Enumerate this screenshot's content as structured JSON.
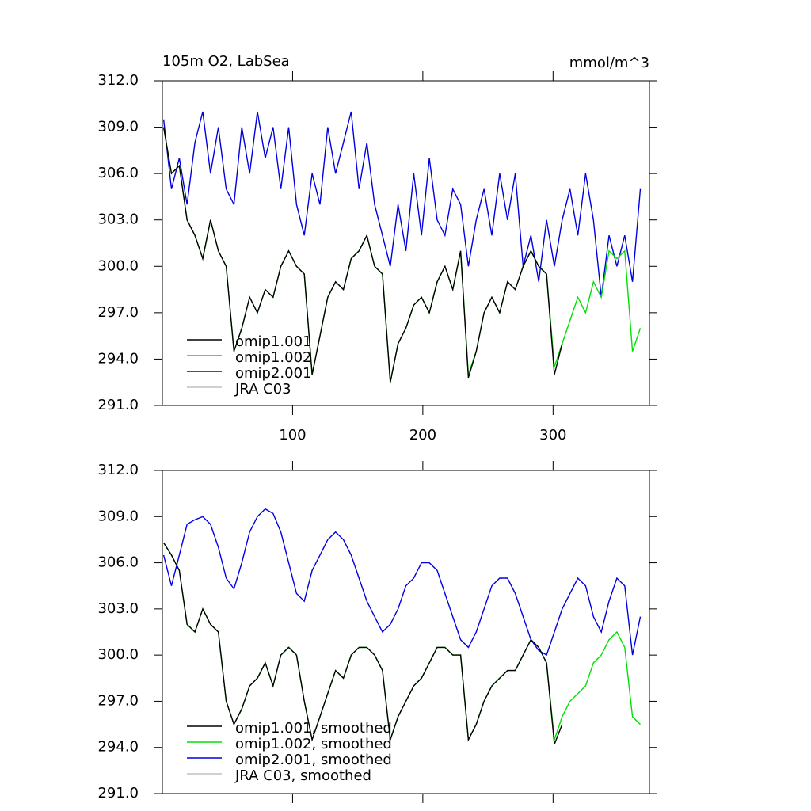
{
  "chart_data": [
    {
      "type": "line",
      "title": "105m O2, LabSea",
      "unit_label": "mmol/m^3",
      "x": [
        1,
        7,
        13,
        19,
        25,
        31,
        37,
        43,
        49,
        55,
        61,
        67,
        73,
        79,
        85,
        91,
        97,
        103,
        109,
        115,
        121,
        127,
        133,
        139,
        145,
        151,
        157,
        163,
        169,
        175,
        181,
        187,
        193,
        199,
        205,
        211,
        217,
        223,
        229,
        235,
        241,
        247,
        253,
        259,
        265,
        271,
        277,
        283,
        289,
        295,
        301,
        307,
        313,
        319,
        325,
        331,
        337,
        343,
        349,
        355,
        361,
        367
      ],
      "series": [
        {
          "name": "omip1.001",
          "color": "#000000",
          "values": [
            309,
            306,
            306.5,
            303,
            302,
            300.5,
            303,
            301,
            300,
            294.5,
            296,
            298,
            297,
            298.5,
            298,
            300,
            301,
            300,
            299.5,
            293,
            295.5,
            298,
            299,
            298.5,
            300.5,
            301,
            302,
            300,
            299.5,
            292.5,
            295,
            296,
            297.5,
            298,
            297,
            299,
            300,
            298.5,
            301,
            292.8,
            294.5,
            297,
            298,
            297,
            299,
            298.5,
            300,
            301,
            300,
            299.5,
            293,
            295,
            null,
            null,
            null,
            null,
            null,
            null,
            null,
            null,
            null,
            null
          ]
        },
        {
          "name": "omip1.002",
          "color": "#00e000",
          "values": [
            309,
            306,
            306.5,
            303,
            302,
            300.5,
            303,
            301,
            300,
            294.5,
            296,
            298,
            297,
            298.5,
            298,
            300,
            301,
            300,
            299.5,
            293,
            295.5,
            298,
            299,
            298.5,
            300.5,
            301,
            302,
            300,
            299.5,
            292.5,
            295,
            296,
            297.5,
            298,
            297,
            299,
            300,
            298.5,
            301,
            293,
            294.5,
            297,
            298,
            297,
            299,
            298.5,
            300,
            301,
            300,
            299.5,
            293.5,
            295,
            296.5,
            298,
            297,
            299,
            298,
            301,
            300.5,
            301,
            294.5,
            296
          ]
        },
        {
          "name": "omip2.001",
          "color": "#0000e0",
          "values": [
            309.5,
            305,
            307,
            304,
            308,
            310,
            306,
            309,
            305,
            304,
            309,
            306,
            310,
            307,
            309,
            305,
            309,
            304,
            302,
            306,
            304,
            309,
            306,
            308,
            310,
            305,
            308,
            304,
            302,
            300,
            304,
            301,
            306,
            302,
            307,
            303,
            302,
            305,
            304,
            300,
            303,
            305,
            302,
            306,
            303,
            306,
            300,
            302,
            299,
            303,
            300,
            303,
            305,
            302,
            306,
            303,
            298,
            302,
            300,
            302,
            299,
            305
          ]
        },
        {
          "name": "JRA C03",
          "color": "#c0c0c0",
          "values": [
            null,
            null,
            null,
            null,
            null,
            null,
            null,
            null,
            null,
            null,
            null,
            null,
            null,
            null,
            null,
            null,
            null,
            null,
            null,
            null,
            null,
            null,
            null,
            null,
            null,
            null,
            null,
            null,
            null,
            null,
            null,
            null,
            null,
            null,
            null,
            null,
            null,
            null,
            null,
            null,
            null,
            null,
            null,
            null,
            null,
            null,
            null,
            null,
            null,
            null,
            null,
            null,
            null,
            null,
            null,
            null,
            null,
            null,
            null,
            null,
            null,
            null
          ]
        }
      ],
      "xlim": [
        0,
        374
      ],
      "ylim": [
        291,
        312
      ],
      "xticks": [
        100,
        200,
        300
      ],
      "yticks": [
        {
          "value": 291,
          "label": "291.0"
        },
        {
          "value": 294,
          "label": "294.0"
        },
        {
          "value": 297,
          "label": "297.0"
        },
        {
          "value": 300,
          "label": "300.0"
        },
        {
          "value": 303,
          "label": "303.0"
        },
        {
          "value": 306,
          "label": "306.0"
        },
        {
          "value": 309,
          "label": "309.0"
        },
        {
          "value": 312,
          "label": "312.0"
        }
      ]
    },
    {
      "type": "line",
      "x": [
        1,
        7,
        13,
        19,
        25,
        31,
        37,
        43,
        49,
        55,
        61,
        67,
        73,
        79,
        85,
        91,
        97,
        103,
        109,
        115,
        121,
        127,
        133,
        139,
        145,
        151,
        157,
        163,
        169,
        175,
        181,
        187,
        193,
        199,
        205,
        211,
        217,
        223,
        229,
        235,
        241,
        247,
        253,
        259,
        265,
        271,
        277,
        283,
        289,
        295,
        301,
        307,
        313,
        319,
        325,
        331,
        337,
        343,
        349,
        355,
        361,
        367
      ],
      "series": [
        {
          "name": "omip1.001, smoothed",
          "color": "#000000",
          "values": [
            307.3,
            306.5,
            305.5,
            302,
            301.5,
            303,
            302,
            301.5,
            297,
            295.5,
            296.5,
            298,
            298.5,
            299.5,
            298,
            300,
            300.5,
            300,
            297,
            294.5,
            296,
            297.5,
            299,
            298.5,
            300,
            300.5,
            300.5,
            300,
            299,
            294.5,
            296,
            297,
            298,
            298.5,
            299.5,
            300.5,
            300.5,
            300,
            300,
            294.5,
            295.5,
            297,
            298,
            298.5,
            299,
            299,
            300,
            301,
            300.5,
            299.5,
            294.2,
            295.5,
            null,
            null,
            null,
            null,
            null,
            null,
            null,
            null,
            null,
            null
          ]
        },
        {
          "name": "omip1.002, smoothed",
          "color": "#00e000",
          "values": [
            307.3,
            306.5,
            305.5,
            302,
            301.5,
            303,
            302,
            301.5,
            297,
            295.5,
            296.5,
            298,
            298.5,
            299.5,
            298,
            300,
            300.5,
            300,
            297,
            294.5,
            296,
            297.5,
            299,
            298.5,
            300,
            300.5,
            300.5,
            300,
            299,
            294.5,
            296,
            297,
            298,
            298.5,
            299.5,
            300.5,
            300.5,
            300,
            300,
            294.5,
            295.5,
            297,
            298,
            298.5,
            299,
            299,
            300,
            301,
            300.5,
            299.5,
            294.5,
            296,
            297,
            297.5,
            298,
            299.5,
            300,
            301,
            301.5,
            300.5,
            296,
            295.5
          ]
        },
        {
          "name": "omip2.001, smoothed",
          "color": "#0000e0",
          "values": [
            306.5,
            304.5,
            306.5,
            308.5,
            308.8,
            309,
            308.5,
            307,
            305,
            304.3,
            306,
            308,
            309,
            309.5,
            309.2,
            308,
            306,
            304,
            303.5,
            305.5,
            306.5,
            307.5,
            308,
            307.5,
            306.5,
            305,
            303.5,
            302.5,
            301.5,
            302,
            303,
            304.5,
            305,
            306,
            306,
            305.5,
            304,
            302.5,
            301,
            300.5,
            301.5,
            303,
            304.5,
            305,
            305,
            304,
            302.5,
            301,
            300.3,
            300,
            301.5,
            303,
            304,
            305,
            304.5,
            302.5,
            301.5,
            303.5,
            305,
            304.5,
            300,
            302.5
          ]
        },
        {
          "name": "JRA C03, smoothed",
          "color": "#c0c0c0",
          "values": [
            null,
            null,
            null,
            null,
            null,
            null,
            null,
            null,
            null,
            null,
            null,
            null,
            null,
            null,
            null,
            null,
            null,
            null,
            null,
            null,
            null,
            null,
            null,
            null,
            null,
            null,
            null,
            null,
            null,
            null,
            null,
            null,
            null,
            null,
            null,
            null,
            null,
            null,
            null,
            null,
            null,
            null,
            null,
            null,
            null,
            null,
            null,
            null,
            null,
            null,
            null,
            null,
            null,
            null,
            null,
            null,
            null,
            null,
            null,
            null,
            null,
            null
          ]
        }
      ],
      "xlim": [
        0,
        374
      ],
      "ylim": [
        291,
        312
      ],
      "xticks": [
        100,
        200,
        300
      ],
      "yticks": [
        {
          "value": 291,
          "label": "291.0"
        },
        {
          "value": 294,
          "label": "294.0"
        },
        {
          "value": 297,
          "label": "297.0"
        },
        {
          "value": 300,
          "label": "300.0"
        },
        {
          "value": 303,
          "label": "303.0"
        },
        {
          "value": 306,
          "label": "306.0"
        },
        {
          "value": 309,
          "label": "309.0"
        },
        {
          "value": 312,
          "label": "312.0"
        }
      ]
    }
  ]
}
